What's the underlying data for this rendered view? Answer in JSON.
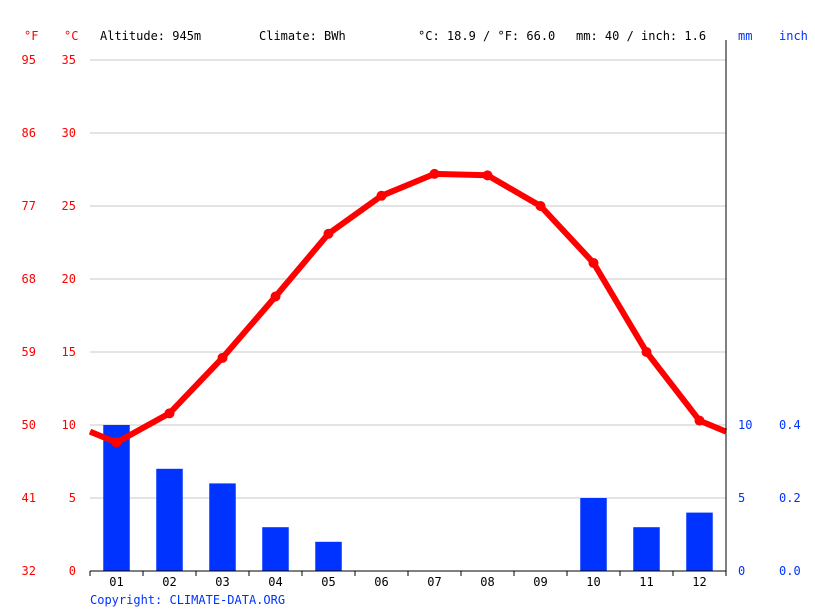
{
  "header": {
    "unit_f": "°F",
    "unit_c": "°C",
    "altitude": "Altitude: 945m",
    "climate": "Climate: BWh",
    "temp_avg": "°C: 18.9 / °F: 66.0",
    "precip_avg": "mm: 40 / inch: 1.6",
    "unit_mm": "mm",
    "unit_inch": "inch"
  },
  "footer": {
    "copyright": "Copyright: CLIMATE-DATA.ORG"
  },
  "chart_data": {
    "type": "bar+line",
    "categories": [
      "01",
      "02",
      "03",
      "04",
      "05",
      "06",
      "07",
      "08",
      "09",
      "10",
      "11",
      "12"
    ],
    "temperature_c": [
      8.8,
      10.8,
      14.6,
      18.8,
      23.1,
      25.7,
      27.2,
      27.1,
      25.0,
      21.1,
      15.0,
      10.3
    ],
    "precipitation_mm": [
      10,
      7,
      6,
      3,
      2,
      0,
      0,
      0,
      0,
      5,
      3,
      4
    ],
    "temp_ylim": [
      0,
      35
    ],
    "precip_ylim": [
      0,
      10
    ],
    "celsius_ticks": [
      "0",
      "5",
      "10",
      "15",
      "20",
      "25",
      "30",
      "35"
    ],
    "fahrenheit_ticks": [
      "32",
      "41",
      "50",
      "59",
      "68",
      "77",
      "86",
      "95"
    ],
    "mm_ticks": [
      "0",
      "5",
      "10"
    ],
    "inch_ticks": [
      "0.0",
      "0.2",
      "0.4"
    ],
    "colors": {
      "temperature": "#ff0000",
      "precipitation": "#0033ff",
      "grid": "#c8c8c8"
    }
  }
}
